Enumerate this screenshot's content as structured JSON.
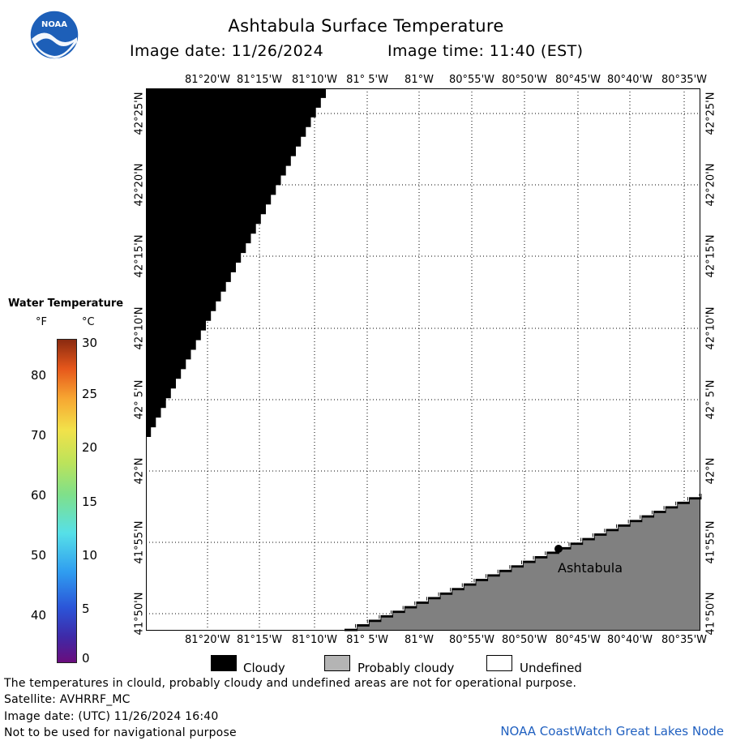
{
  "header": {
    "title": "Ashtabula Surface Temperature",
    "image_date": "Image date: 11/26/2024",
    "image_time": "Image time: 11:40 (EST)"
  },
  "logo": {
    "text": "NOAA"
  },
  "legend": {
    "title": "Water Temperature",
    "unit_f": "°F",
    "unit_c": "°C",
    "fahrenheit_ticks": [
      "80",
      "70",
      "60",
      "50",
      "40"
    ],
    "celsius_ticks": [
      "30",
      "25",
      "20",
      "15",
      "10",
      "5",
      "0"
    ]
  },
  "map": {
    "lon_labels": [
      "81°20'W",
      "81°15'W",
      "81°10'W",
      "81° 5'W",
      "81°W",
      "80°55'W",
      "80°50'W",
      "80°45'W",
      "80°40'W",
      "80°35'W"
    ],
    "lat_labels": [
      "42°25'N",
      "42°20'N",
      "42°15'N",
      "42°10'N",
      "42° 5'N",
      "42°N",
      "41°55'N",
      "41°50'N"
    ],
    "place_label": "Ashtabula",
    "colors": {
      "cloud": "#000000",
      "land": "#808080",
      "undefined": "#ffffff",
      "grid": "#000000"
    }
  },
  "key": {
    "cloudy": "Cloudy",
    "probably_cloudy": "Probably cloudy",
    "undefined": "Undefined"
  },
  "footer": {
    "note": "The temperatures in clould, probably cloudy and undefined areas are not for operational purpose.",
    "satellite": "Satellite: AVHRRF_MC",
    "utc_date": "Image date: (UTC) 11/26/2024  16:40",
    "disclaimer": "Not to be used for navigational purpose",
    "credit": "NOAA CoastWatch Great Lakes Node"
  }
}
